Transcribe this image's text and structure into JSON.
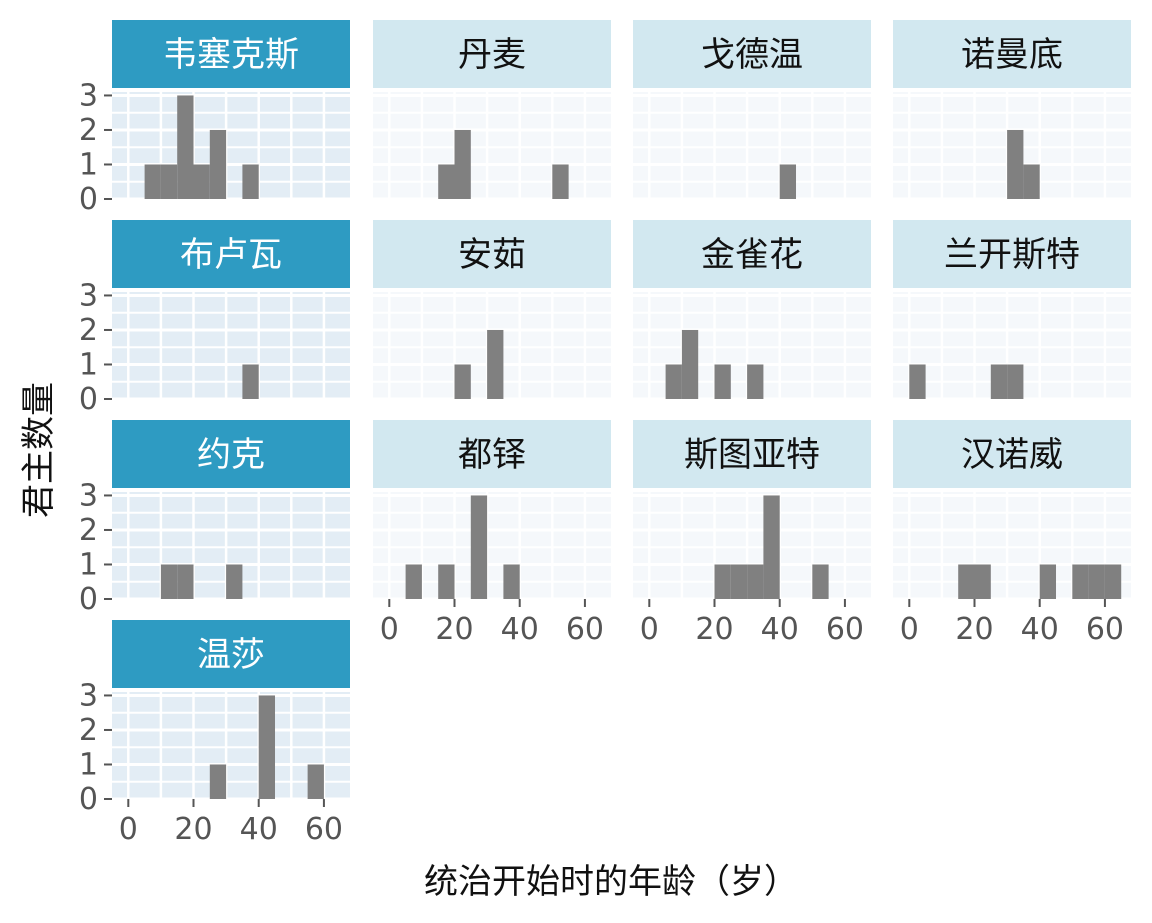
{
  "chart_data": {
    "type": "bar",
    "xlabel": "统治开始时的年龄（岁）",
    "ylabel": "君主数量",
    "x_ticks": [
      0,
      20,
      40,
      60
    ],
    "y_ticks": [
      0,
      1,
      2,
      3
    ],
    "xlim": [
      -5,
      68
    ],
    "ylim": [
      0,
      3.1
    ],
    "bin_width": 5,
    "grid": true,
    "colors": {
      "bar": "#808080",
      "strip_highlight": "#2e9bc2",
      "strip_plain": "#d2e8f0",
      "strip_text_highlight": "#ffffff",
      "strip_text_plain": "#111111",
      "panel_bg_highlight": "#e3edf5",
      "panel_bg_plain": "#f5f8fb"
    },
    "panels": [
      {
        "name": "韦塞克斯",
        "highlight": true,
        "bins": [
          {
            "x0": 5,
            "count": 1
          },
          {
            "x0": 10,
            "count": 1
          },
          {
            "x0": 15,
            "count": 3
          },
          {
            "x0": 20,
            "count": 1
          },
          {
            "x0": 25,
            "count": 2
          },
          {
            "x0": 35,
            "count": 1
          }
        ]
      },
      {
        "name": "丹麦",
        "highlight": false,
        "bins": [
          {
            "x0": 15,
            "count": 1
          },
          {
            "x0": 20,
            "count": 2
          },
          {
            "x0": 50,
            "count": 1
          }
        ]
      },
      {
        "name": "戈德温",
        "highlight": false,
        "bins": [
          {
            "x0": 40,
            "count": 1
          }
        ]
      },
      {
        "name": "诺曼底",
        "highlight": false,
        "bins": [
          {
            "x0": 30,
            "count": 2
          },
          {
            "x0": 35,
            "count": 1
          }
        ]
      },
      {
        "name": "布卢瓦",
        "highlight": true,
        "bins": [
          {
            "x0": 35,
            "count": 1
          }
        ]
      },
      {
        "name": "安茹",
        "highlight": false,
        "bins": [
          {
            "x0": 20,
            "count": 1
          },
          {
            "x0": 30,
            "count": 2
          }
        ]
      },
      {
        "name": "金雀花",
        "highlight": false,
        "bins": [
          {
            "x0": 5,
            "count": 1
          },
          {
            "x0": 10,
            "count": 2
          },
          {
            "x0": 20,
            "count": 1
          },
          {
            "x0": 30,
            "count": 1
          }
        ]
      },
      {
        "name": "兰开斯特",
        "highlight": false,
        "bins": [
          {
            "x0": 0,
            "count": 1
          },
          {
            "x0": 25,
            "count": 1
          },
          {
            "x0": 30,
            "count": 1
          }
        ]
      },
      {
        "name": "约克",
        "highlight": true,
        "bins": [
          {
            "x0": 10,
            "count": 1
          },
          {
            "x0": 15,
            "count": 1
          },
          {
            "x0": 30,
            "count": 1
          }
        ]
      },
      {
        "name": "都铎",
        "highlight": false,
        "bins": [
          {
            "x0": 5,
            "count": 1
          },
          {
            "x0": 15,
            "count": 1
          },
          {
            "x0": 25,
            "count": 3
          },
          {
            "x0": 35,
            "count": 1
          }
        ]
      },
      {
        "name": "斯图亚特",
        "highlight": false,
        "bins": [
          {
            "x0": 20,
            "count": 1
          },
          {
            "x0": 25,
            "count": 1
          },
          {
            "x0": 30,
            "count": 1
          },
          {
            "x0": 35,
            "count": 3
          },
          {
            "x0": 50,
            "count": 1
          }
        ]
      },
      {
        "name": "汉诺威",
        "highlight": false,
        "bins": [
          {
            "x0": 15,
            "count": 1
          },
          {
            "x0": 20,
            "count": 1
          },
          {
            "x0": 40,
            "count": 1
          },
          {
            "x0": 50,
            "count": 1
          },
          {
            "x0": 55,
            "count": 1
          },
          {
            "x0": 60,
            "count": 1
          }
        ]
      },
      {
        "name": "温莎",
        "highlight": true,
        "bins": [
          {
            "x0": 25,
            "count": 1
          },
          {
            "x0": 40,
            "count": 3
          },
          {
            "x0": 55,
            "count": 1
          }
        ]
      }
    ]
  }
}
